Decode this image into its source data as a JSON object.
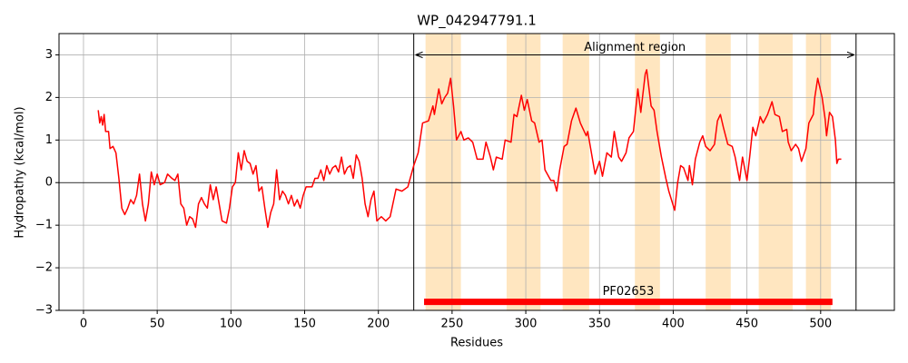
{
  "chart_data": {
    "type": "line",
    "title": "WP_042947791.1",
    "xlabel": "Residues",
    "ylabel": "Hydropathy (kcal/mol)",
    "x": [
      10,
      11,
      12,
      13,
      14,
      15,
      17,
      18,
      20,
      22,
      24,
      26,
      28,
      30,
      32,
      34,
      36,
      38,
      40,
      42,
      44,
      46,
      48,
      50,
      52,
      55,
      57,
      60,
      62,
      64,
      66,
      68,
      70,
      72,
      74,
      76,
      78,
      80,
      82,
      84,
      86,
      88,
      90,
      92,
      94,
      97,
      99,
      101,
      103,
      105,
      107,
      109,
      111,
      113,
      115,
      117,
      119,
      121,
      123,
      125,
      127,
      129,
      131,
      133,
      135,
      137,
      139,
      141,
      143,
      145,
      147,
      149,
      151,
      155,
      157,
      159,
      161,
      163,
      165,
      167,
      169,
      171,
      173,
      175,
      177,
      179,
      181,
      183,
      185,
      187,
      189,
      191,
      193,
      195,
      197,
      199,
      202,
      205,
      208,
      212,
      216,
      220,
      224,
      227,
      230,
      234,
      237,
      238,
      241,
      243,
      245,
      247,
      249,
      251,
      253,
      256,
      258,
      261,
      264,
      267,
      271,
      273,
      276,
      278,
      280,
      284,
      286,
      290,
      292,
      294,
      297,
      299,
      301,
      304,
      306,
      309,
      311,
      313,
      317,
      319,
      321,
      323,
      326,
      328,
      331,
      334,
      337,
      341,
      342,
      345,
      347,
      350,
      352,
      355,
      358,
      360,
      363,
      365,
      368,
      370,
      373,
      376,
      378,
      381,
      382,
      385,
      387,
      389,
      392,
      395,
      397,
      401,
      403,
      405,
      407,
      410,
      411,
      413,
      415,
      418,
      420,
      422,
      425,
      428,
      430,
      432,
      434,
      437,
      440,
      442,
      445,
      447,
      450,
      452,
      454,
      456,
      459,
      461,
      464,
      467,
      469,
      472,
      474,
      477,
      478,
      480,
      483,
      485,
      487,
      490,
      492,
      495,
      496,
      498,
      501,
      503,
      504,
      506,
      508,
      510,
      511,
      512,
      514
    ],
    "values": [
      1.7,
      1.4,
      1.55,
      1.35,
      1.6,
      1.2,
      1.2,
      0.8,
      0.85,
      0.7,
      0.1,
      -0.6,
      -0.75,
      -0.6,
      -0.4,
      -0.5,
      -0.3,
      0.2,
      -0.5,
      -0.9,
      -0.5,
      0.25,
      -0.05,
      0.2,
      -0.05,
      0,
      0.2,
      0.1,
      0.05,
      0.2,
      -0.5,
      -0.6,
      -1,
      -0.8,
      -0.85,
      -1.05,
      -0.5,
      -0.35,
      -0.5,
      -0.6,
      -0.05,
      -0.4,
      -0.1,
      -0.5,
      -0.9,
      -0.95,
      -0.6,
      -0.1,
      0,
      0.7,
      0.3,
      0.75,
      0.5,
      0.45,
      0.2,
      0.4,
      -0.2,
      -0.1,
      -0.6,
      -1.05,
      -0.7,
      -0.5,
      0.3,
      -0.4,
      -0.2,
      -0.3,
      -0.5,
      -0.3,
      -0.55,
      -0.4,
      -0.6,
      -0.3,
      -0.1,
      -0.1,
      0.1,
      0.1,
      0.3,
      0.05,
      0.4,
      0.2,
      0.35,
      0.4,
      0.25,
      0.6,
      0.2,
      0.35,
      0.4,
      0.1,
      0.65,
      0.5,
      0.1,
      -0.5,
      -0.8,
      -0.4,
      -0.2,
      -0.9,
      -0.8,
      -0.9,
      -0.8,
      -0.15,
      -0.2,
      -0.1,
      0.4,
      0.7,
      1.4,
      1.45,
      1.8,
      1.6,
      2.2,
      1.85,
      2.0,
      2.1,
      2.45,
      1.8,
      1.0,
      1.2,
      1.0,
      1.05,
      0.95,
      0.55,
      0.55,
      0.95,
      0.6,
      0.3,
      0.6,
      0.55,
      1.0,
      0.95,
      1.6,
      1.55,
      2.05,
      1.7,
      1.95,
      1.45,
      1.4,
      0.95,
      1.0,
      0.3,
      0.05,
      0.05,
      -0.2,
      0.3,
      0.85,
      0.9,
      1.45,
      1.75,
      1.4,
      1.1,
      1.2,
      0.6,
      0.2,
      0.5,
      0.15,
      0.7,
      0.6,
      1.2,
      0.6,
      0.5,
      0.7,
      1.05,
      1.2,
      2.2,
      1.65,
      2.55,
      2.65,
      1.8,
      1.7,
      1.2,
      0.6,
      0.1,
      -0.2,
      -0.65,
      0,
      0.4,
      0.35,
      0.05,
      0.4,
      -0.05,
      0.55,
      0.95,
      1.1,
      0.85,
      0.75,
      0.9,
      1.45,
      1.6,
      1.3,
      0.9,
      0.85,
      0.6,
      0.05,
      0.6,
      0.05,
      0.65,
      1.3,
      1.1,
      1.55,
      1.4,
      1.6,
      1.9,
      1.6,
      1.55,
      1.2,
      1.25,
      0.95,
      0.75,
      0.9,
      0.8,
      0.5,
      0.8,
      1.4,
      1.6,
      2.0,
      2.45,
      2.0,
      1.5,
      1.1,
      1.65,
      1.55,
      1.0,
      0.45,
      0.55,
      0.55
    ],
    "color": "#ff0000",
    "xlim": [
      -16.6,
      550
    ],
    "ylim": [
      -3,
      3.5
    ],
    "xticks": [
      0,
      50,
      100,
      150,
      200,
      250,
      300,
      350,
      400,
      450,
      500
    ],
    "yticks": [
      {
        "value": -3,
        "label": "−3"
      },
      {
        "value": -2,
        "label": "−2"
      },
      {
        "value": -1,
        "label": "−1"
      },
      0,
      1,
      2,
      3
    ],
    "grid": true,
    "zero_line": 0,
    "shaded_regions": [
      [
        232,
        256
      ],
      [
        287,
        310
      ],
      [
        325,
        343
      ],
      [
        374,
        391
      ],
      [
        422,
        439
      ],
      [
        458,
        481
      ],
      [
        490,
        507
      ]
    ],
    "shade_color": "#ffe6c0",
    "alignment_lines": [
      224,
      524
    ],
    "alignment_label": "Alignment region",
    "alignment_arrow_y": 3,
    "domain": {
      "label": "PF02653",
      "start": 231,
      "end": 508,
      "y": -2.8
    }
  }
}
